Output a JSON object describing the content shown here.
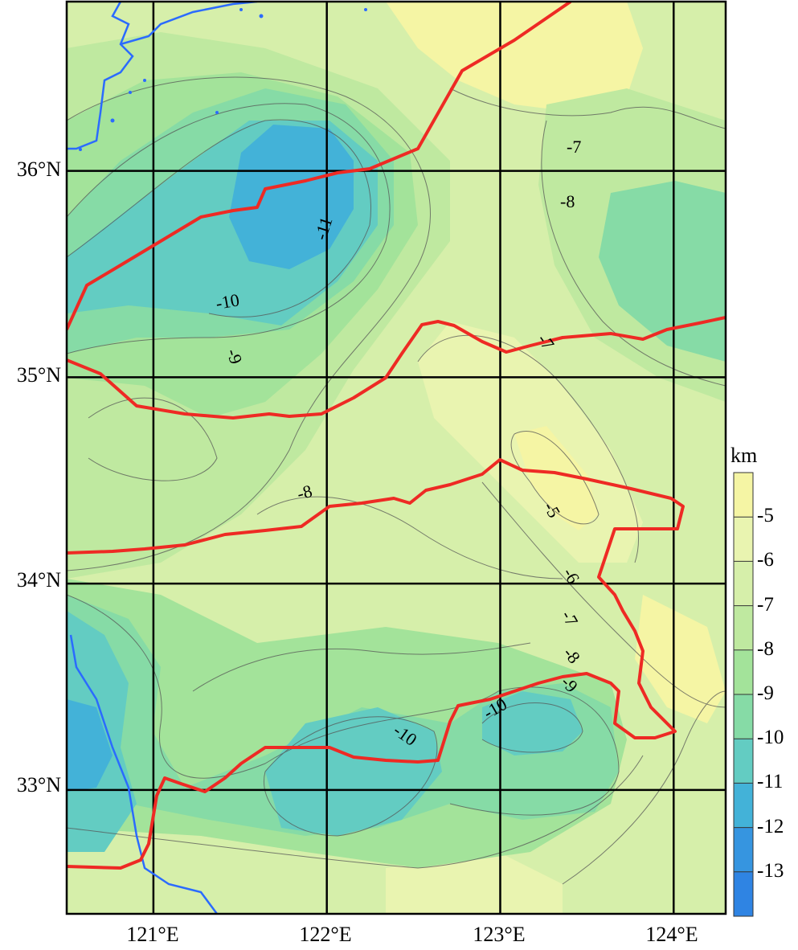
{
  "map": {
    "lon_range": [
      120.5,
      124.3
    ],
    "lat_range": [
      32.4,
      36.82
    ],
    "grid_lons": [
      121,
      122,
      123,
      124
    ],
    "grid_lats": [
      33,
      34,
      35,
      36
    ],
    "x_ticks": [
      "121°E",
      "122°E",
      "123°E",
      "124°E"
    ],
    "y_ticks": [
      "36°N",
      "35°N",
      "34°N",
      "33°N"
    ],
    "contour_labels": [
      "-7",
      "-8",
      "-11",
      "-10",
      "-9",
      "-7",
      "-8",
      "-5",
      "-6",
      "-7",
      "-8",
      "-9",
      "-10",
      "-10"
    ],
    "colors": {
      "coastline": "#2b6bff",
      "boundary": "#ee2a24",
      "grid": "#000000"
    }
  },
  "colorbar": {
    "unit": "km",
    "levels": [
      "-5",
      "-6",
      "-7",
      "-8",
      "-9",
      "-10",
      "-11",
      "-12",
      "-13"
    ],
    "colors": [
      "#f5f5a4",
      "#e9f4b0",
      "#d6efaa",
      "#bfe9a0",
      "#a3e39a",
      "#86dba6",
      "#63ccc2",
      "#43b2d8",
      "#3695e0",
      "#2f84e3"
    ]
  }
}
